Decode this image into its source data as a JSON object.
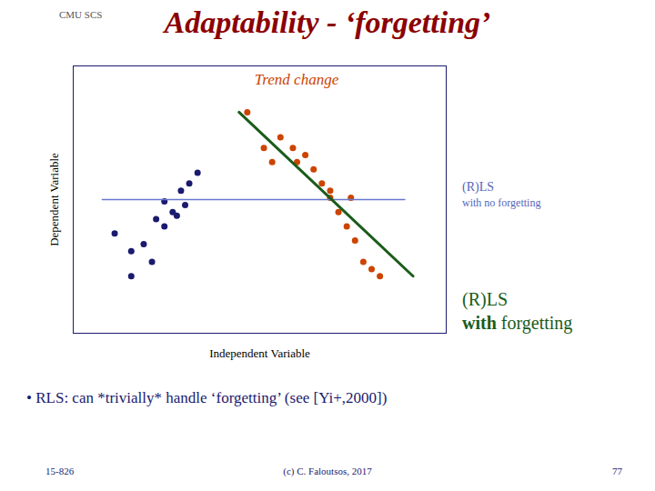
{
  "chart_data": {
    "type": "scatter",
    "title": "Adaptability - ‘forgetting’",
    "title_color": "#8B0000",
    "xlabel": "Independent Variable",
    "ylabel": "Dependent Variable",
    "xlim": [
      0.0,
      0.9
    ],
    "ylim": [
      0.1,
      0.85
    ],
    "xticks": [],
    "yticks": [],
    "tick_labels": false,
    "grid": false,
    "series": [
      {
        "type": "scatter",
        "color": "#1a1a6e",
        "marker": "circle",
        "x": [
          0.1,
          0.14,
          0.17,
          0.2,
          0.22,
          0.24,
          0.26,
          0.28,
          0.3,
          0.22,
          0.25,
          0.27,
          0.19,
          0.14
        ],
        "values": [
          0.38,
          0.33,
          0.35,
          0.42,
          0.47,
          0.44,
          0.5,
          0.52,
          0.55,
          0.4,
          0.43,
          0.46,
          0.3,
          0.26
        ]
      },
      {
        "type": "scatter",
        "color": "#CC4400",
        "marker": "circle",
        "x": [
          0.42,
          0.46,
          0.5,
          0.53,
          0.56,
          0.58,
          0.6,
          0.62,
          0.64,
          0.66,
          0.68,
          0.7,
          0.72,
          0.54,
          0.48,
          0.62,
          0.67,
          0.74
        ],
        "values": [
          0.72,
          0.62,
          0.65,
          0.62,
          0.6,
          0.56,
          0.52,
          0.48,
          0.44,
          0.4,
          0.36,
          0.3,
          0.28,
          0.58,
          0.58,
          0.5,
          0.48,
          0.26
        ]
      },
      {
        "type": "line",
        "color": "#6677CC",
        "line_style": "solid",
        "x": [
          0.07,
          0.8
        ],
        "values": [
          0.475,
          0.475
        ]
      },
      {
        "type": "line",
        "color": "#1a5c1a",
        "line_style": "solid",
        "x": [
          0.4,
          0.82
        ],
        "values": [
          0.72,
          0.26
        ]
      }
    ],
    "annotations": [
      {
        "text": "Trend change",
        "color": "#CC4400"
      },
      {
        "text": "(R)LS",
        "color": "#5566BB"
      },
      {
        "text": "with no forgetting",
        "color": "#5566BB"
      },
      {
        "text": "(R)LS",
        "color": "#1a5c1a"
      },
      {
        "text": "with forgetting",
        "color": "#1a5c1a"
      },
      {
        "text": "• RLS: can *trivially* handle ‘forgetting’ (see [Yi+,2000])",
        "color": "#1a1a6e"
      },
      {
        "text": "CMU SCS",
        "color": "#555555"
      },
      {
        "text": "15-826",
        "color": "#1a1a6e"
      },
      {
        "text": "(c) C. Faloutsos, 2017",
        "color": "#1a1a6e"
      },
      {
        "text": "77",
        "color": "#1a1a6e"
      }
    ]
  }
}
